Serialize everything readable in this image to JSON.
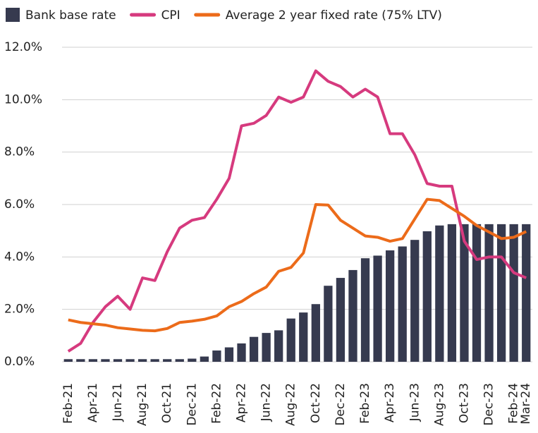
{
  "chart_data": {
    "type": "bar_line",
    "categories": [
      "Feb-21",
      null,
      "Apr-21",
      null,
      "Jun-21",
      null,
      "Aug-21",
      null,
      "Oct-21",
      null,
      "Dec-21",
      null,
      "Feb-22",
      null,
      "Apr-22",
      null,
      "Jun-22",
      null,
      "Aug-22",
      null,
      "Oct-22",
      null,
      "Dec-22",
      null,
      "Feb-23",
      null,
      "Apr-23",
      null,
      "Jun-23",
      null,
      "Aug-23",
      null,
      "Oct-23",
      null,
      "Dec-23",
      null,
      "Feb-24",
      "Mar-24"
    ],
    "series": [
      {
        "name": "Bank base rate",
        "type": "bar",
        "color": "#363a4f",
        "values": [
          0.1,
          0.1,
          0.1,
          0.1,
          0.1,
          0.1,
          0.1,
          0.1,
          0.1,
          0.1,
          0.12,
          0.2,
          0.43,
          0.55,
          0.7,
          0.95,
          1.1,
          1.2,
          1.65,
          1.88,
          2.2,
          2.9,
          3.2,
          3.5,
          3.95,
          4.05,
          4.25,
          4.4,
          4.65,
          4.98,
          5.2,
          5.25,
          5.25,
          5.25,
          5.25,
          5.25,
          5.25,
          5.25
        ]
      },
      {
        "name": "CPI",
        "type": "line",
        "color": "#d63a7e",
        "values": [
          0.4,
          0.7,
          1.5,
          2.1,
          2.5,
          2.0,
          3.2,
          3.1,
          4.2,
          5.1,
          5.4,
          5.5,
          6.2,
          7.0,
          9.0,
          9.1,
          9.4,
          10.1,
          9.9,
          10.1,
          11.1,
          10.7,
          10.5,
          10.1,
          10.4,
          10.1,
          8.7,
          8.7,
          7.9,
          6.8,
          6.7,
          6.7,
          4.6,
          3.9,
          4.0,
          4.0,
          3.4,
          3.2
        ]
      },
      {
        "name": "Average 2 year fixed rate (75% LTV)",
        "type": "line",
        "color": "#ec6b1a",
        "values": [
          1.6,
          1.5,
          1.45,
          1.4,
          1.3,
          1.25,
          1.2,
          1.18,
          1.27,
          1.5,
          1.55,
          1.62,
          1.75,
          2.1,
          2.3,
          2.6,
          2.85,
          3.45,
          3.6,
          4.15,
          6.0,
          5.98,
          5.4,
          5.1,
          4.8,
          4.75,
          4.6,
          4.7,
          5.45,
          6.2,
          6.15,
          5.85,
          5.55,
          5.2,
          4.95,
          4.7,
          4.75,
          4.97
        ]
      }
    ],
    "ylim": [
      0,
      12
    ],
    "yticks": [
      {
        "value": 0,
        "label": "0.0%"
      },
      {
        "value": 2,
        "label": "2.0%"
      },
      {
        "value": 4,
        "label": "4.0%"
      },
      {
        "value": 6,
        "label": "6.0%"
      },
      {
        "value": 8,
        "label": "8.0%"
      },
      {
        "value": 10,
        "label": "10.0%"
      },
      {
        "value": 12,
        "label": "12.0%"
      }
    ],
    "grid": true,
    "legend": "top"
  }
}
